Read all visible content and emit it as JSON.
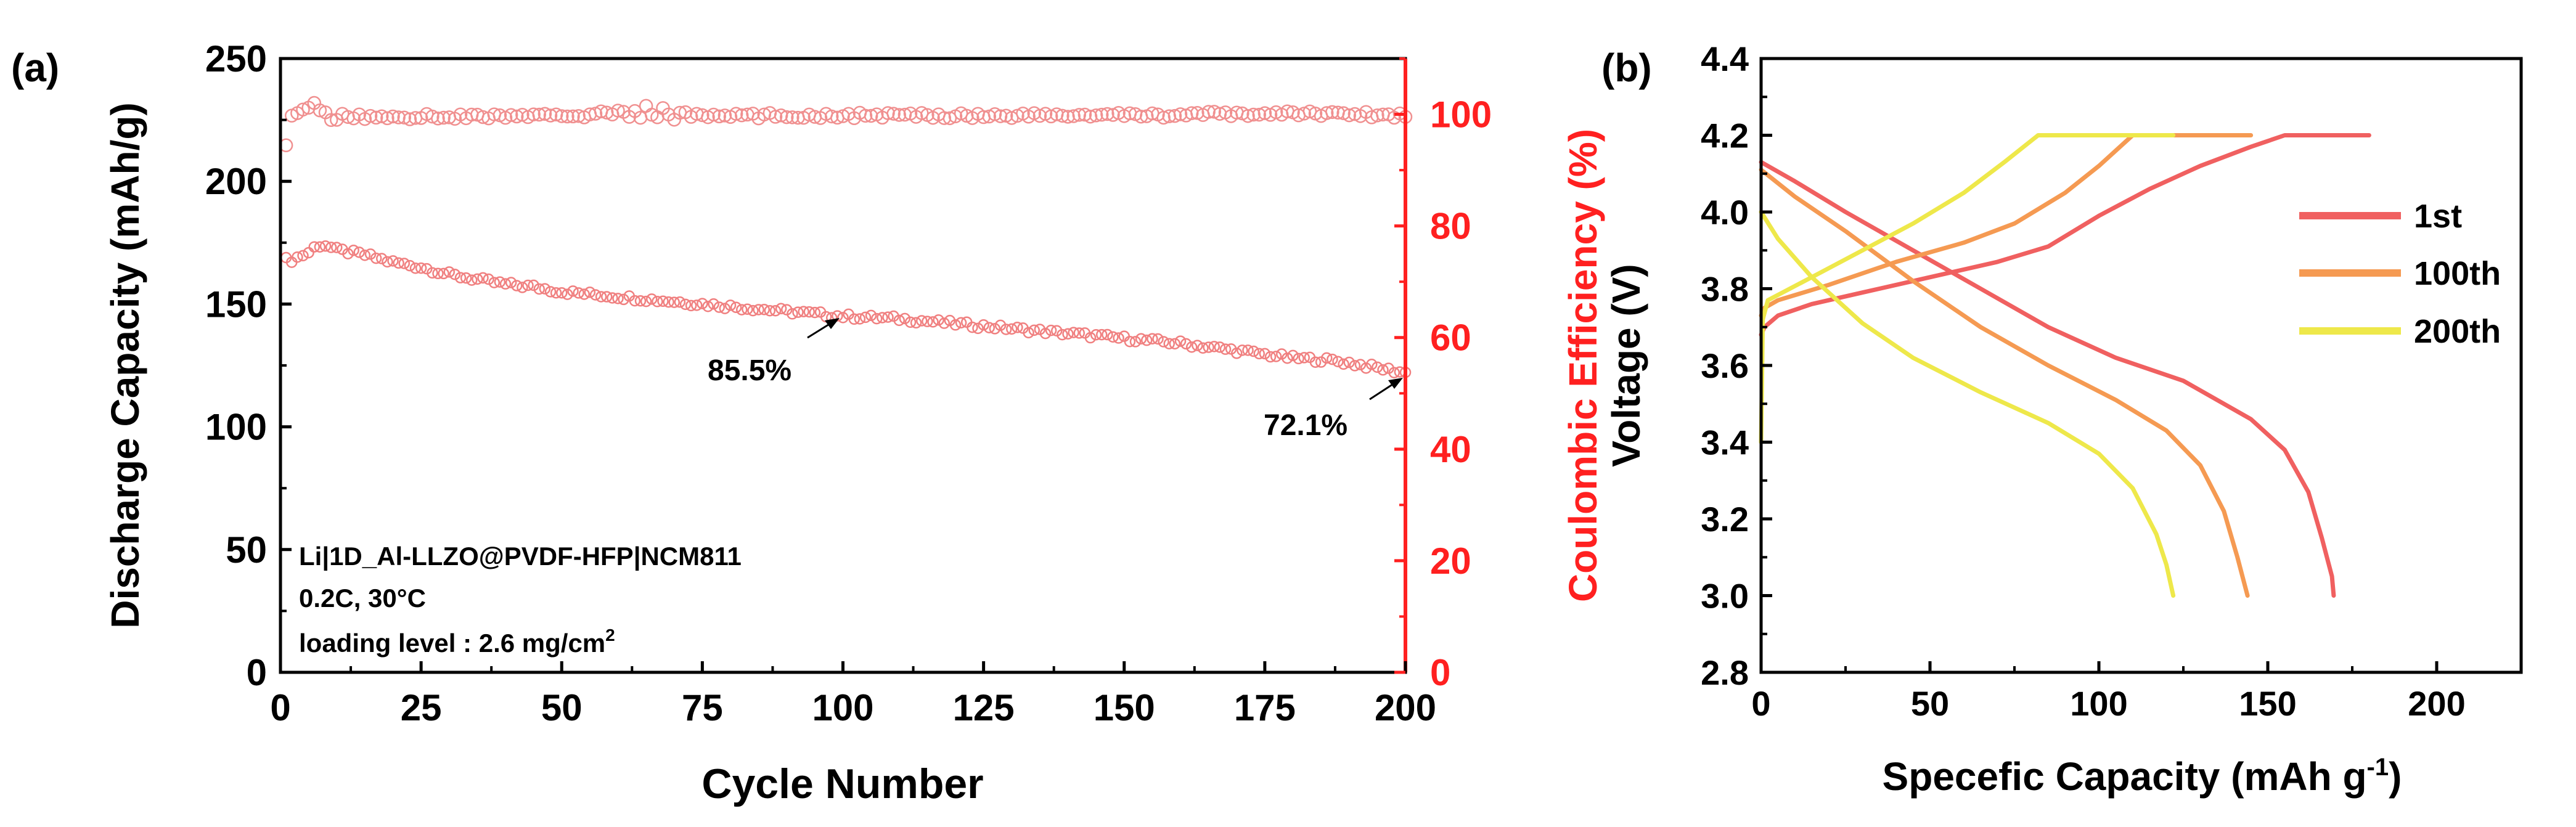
{
  "colors": {
    "axis": "#000000",
    "ce_axis": "#ff2020",
    "capacity_marker": "#f08080",
    "ce_marker": "#f09090",
    "s1": "#f06060",
    "s100": "#f59a52",
    "s200": "#eee84a"
  },
  "chart_data": [
    {
      "type": "scatter",
      "panel_label": "(a)",
      "title": "",
      "xlabel": "Cycle Number",
      "ylabel": "Discharge Capacity (mAh/g)",
      "y2label": "Coulombic Efficiency (%)",
      "xlim": [
        0,
        200
      ],
      "ylim": [
        0,
        250
      ],
      "y2lim": [
        0,
        110
      ],
      "xticks": [
        "0",
        "25",
        "50",
        "75",
        "100",
        "125",
        "150",
        "175",
        "200"
      ],
      "yticks": [
        "0",
        "50",
        "100",
        "150",
        "200",
        "250"
      ],
      "y2ticks": [
        "0",
        "20",
        "40",
        "60",
        "80",
        "100"
      ],
      "series": [
        {
          "name": "Discharge Capacity",
          "axis": "left",
          "marker": "open-circle",
          "description": "one point per cycle 1-200",
          "anchors": [
            [
              1,
              168
            ],
            [
              2,
              168
            ],
            [
              3,
              169
            ],
            [
              4,
              170
            ],
            [
              5,
              171
            ],
            [
              6,
              173
            ],
            [
              7,
              174
            ],
            [
              8,
              174
            ],
            [
              9,
              173
            ],
            [
              10,
              172
            ],
            [
              15,
              170
            ],
            [
              20,
              167
            ],
            [
              25,
              165
            ],
            [
              30,
              162
            ],
            [
              35,
              160
            ],
            [
              40,
              158
            ],
            [
              45,
              157
            ],
            [
              50,
              155
            ],
            [
              55,
              154
            ],
            [
              60,
              153
            ],
            [
              65,
              152
            ],
            [
              70,
              151
            ],
            [
              75,
              150
            ],
            [
              80,
              149
            ],
            [
              90,
              147
            ],
            [
              100,
              145
            ],
            [
              110,
              144
            ],
            [
              120,
              142
            ],
            [
              130,
              140
            ],
            [
              140,
              138
            ],
            [
              150,
              136
            ],
            [
              160,
              134
            ],
            [
              170,
              131
            ],
            [
              180,
              128
            ],
            [
              187,
              127
            ],
            [
              190,
              126
            ],
            [
              195,
              124
            ],
            [
              200,
              122
            ]
          ]
        },
        {
          "name": "Coulombic Efficiency",
          "axis": "right",
          "marker": "open-circle",
          "description": "one point per cycle 1-200, approximately 99-101 %",
          "anchors": [
            [
              1,
              94
            ],
            [
              2,
              99
            ],
            [
              3,
              100
            ],
            [
              4,
              100.5
            ],
            [
              5,
              101.5
            ],
            [
              10,
              99.5
            ],
            [
              25,
              99.6
            ],
            [
              50,
              99.7
            ],
            [
              65,
              100.5
            ],
            [
              75,
              99.7
            ],
            [
              100,
              99.8
            ],
            [
              150,
              99.8
            ],
            [
              185,
              100.2
            ],
            [
              200,
              99.8
            ]
          ]
        }
      ],
      "annotations": [
        {
          "text": "85.5%",
          "x": 100,
          "y": 145
        },
        {
          "text": "72.1%",
          "x": 200,
          "y": 122
        }
      ],
      "info": {
        "line1": "Li|1D_Al-LLZO@PVDF-HFP|NCM811",
        "line2": "0.2C, 30°C",
        "line3": "loading level : 2.6 mg/cm",
        "line3_sup": "2"
      }
    },
    {
      "type": "line",
      "panel_label": "(b)",
      "title": "",
      "xlabel": "Specefic Capacity (mAh g",
      "xlabel_sup": "-1",
      "xlabel_end": ")",
      "ylabel": "Voltage (V)",
      "xlim": [
        0,
        225
      ],
      "ylim": [
        2.8,
        4.4
      ],
      "xticks": [
        "0",
        "50",
        "100",
        "150",
        "200"
      ],
      "yticks": [
        "2.8",
        "3.0",
        "3.2",
        "3.4",
        "3.6",
        "3.8",
        "4.0",
        "4.2",
        "4.4"
      ],
      "legend": [
        "1st",
        "100th",
        "200th"
      ],
      "legend_position": "right",
      "series": [
        {
          "name": "1st",
          "charge": [
            [
              0,
              3.68
            ],
            [
              1,
              3.7
            ],
            [
              5,
              3.73
            ],
            [
              15,
              3.76
            ],
            [
              30,
              3.79
            ],
            [
              50,
              3.83
            ],
            [
              70,
              3.87
            ],
            [
              85,
              3.91
            ],
            [
              100,
              3.99
            ],
            [
              115,
              4.06
            ],
            [
              130,
              4.12
            ],
            [
              145,
              4.17
            ],
            [
              155,
              4.2
            ],
            [
              180,
              4.2
            ]
          ],
          "discharge": [
            [
              0,
              4.13
            ],
            [
              10,
              4.08
            ],
            [
              25,
              4.0
            ],
            [
              45,
              3.9
            ],
            [
              65,
              3.8
            ],
            [
              85,
              3.7
            ],
            [
              105,
              3.62
            ],
            [
              125,
              3.56
            ],
            [
              145,
              3.46
            ],
            [
              155,
              3.38
            ],
            [
              162,
              3.27
            ],
            [
              166,
              3.15
            ],
            [
              169,
              3.05
            ],
            [
              169.5,
              3.0
            ]
          ]
        },
        {
          "name": "100th",
          "charge": [
            [
              0,
              3.73
            ],
            [
              1,
              3.75
            ],
            [
              5,
              3.77
            ],
            [
              20,
              3.81
            ],
            [
              40,
              3.87
            ],
            [
              60,
              3.92
            ],
            [
              75,
              3.97
            ],
            [
              90,
              4.05
            ],
            [
              100,
              4.12
            ],
            [
              110,
              4.2
            ],
            [
              145,
              4.2
            ]
          ],
          "discharge": [
            [
              0,
              4.11
            ],
            [
              10,
              4.04
            ],
            [
              25,
              3.95
            ],
            [
              45,
              3.82
            ],
            [
              65,
              3.7
            ],
            [
              85,
              3.6
            ],
            [
              105,
              3.51
            ],
            [
              120,
              3.43
            ],
            [
              130,
              3.34
            ],
            [
              137,
              3.22
            ],
            [
              141,
              3.1
            ],
            [
              144,
              3.0
            ]
          ]
        },
        {
          "name": "200th",
          "charge": [
            [
              0,
              3.4
            ],
            [
              0.5,
              3.72
            ],
            [
              2,
              3.77
            ],
            [
              15,
              3.83
            ],
            [
              30,
              3.9
            ],
            [
              45,
              3.97
            ],
            [
              60,
              4.05
            ],
            [
              72,
              4.13
            ],
            [
              82,
              4.2
            ],
            [
              122,
              4.2
            ]
          ],
          "discharge": [
            [
              0,
              4.0
            ],
            [
              5,
              3.93
            ],
            [
              15,
              3.83
            ],
            [
              30,
              3.71
            ],
            [
              45,
              3.62
            ],
            [
              65,
              3.53
            ],
            [
              85,
              3.45
            ],
            [
              100,
              3.37
            ],
            [
              110,
              3.28
            ],
            [
              117,
              3.16
            ],
            [
              120,
              3.08
            ],
            [
              122,
              3.0
            ]
          ]
        }
      ]
    }
  ]
}
